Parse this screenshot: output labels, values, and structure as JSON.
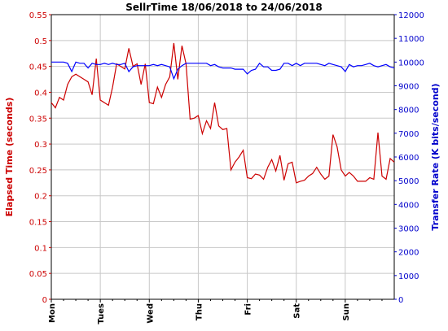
{
  "chart_data": {
    "type": "line",
    "title": "SellrTime 18/06/2018 to 24/06/2018",
    "ylabel": "Elapsed Time (seconds)",
    "y2label": "Transfer Rate (K bits/second)",
    "colors": {
      "elapsed": "#cc0000",
      "transfer": "#0000ff",
      "grid": "#c8c8c8"
    },
    "ylim": [
      0,
      0.55
    ],
    "y2lim": [
      0,
      12000
    ],
    "x_ticks": [
      "Mon",
      "Tues",
      "Wed",
      "Thu",
      "Fri",
      "Sat",
      "Sun"
    ],
    "y_ticks": [
      "0",
      "0.05",
      "0.1",
      "0.15",
      "0.2",
      "0.25",
      "0.3",
      "0.35",
      "0.4",
      "0.45",
      "0.5",
      "0.55"
    ],
    "y2_ticks": [
      "0",
      "1000",
      "2000",
      "3000",
      "4000",
      "5000",
      "6000",
      "7000",
      "8000",
      "9000",
      "10000",
      "11000",
      "12000"
    ],
    "x_range_days": 7,
    "series": [
      {
        "axis": "left",
        "color": "#cc0000",
        "x": [
          0,
          0.083,
          0.167,
          0.25,
          0.333,
          0.417,
          0.5,
          0.583,
          0.667,
          0.75,
          0.833,
          0.917,
          1.0,
          1.083,
          1.167,
          1.25,
          1.333,
          1.417,
          1.5,
          1.583,
          1.667,
          1.75,
          1.833,
          1.917,
          2.0,
          2.083,
          2.167,
          2.25,
          2.333,
          2.417,
          2.5,
          2.583,
          2.667,
          2.75,
          2.833,
          2.917,
          3.0,
          3.083,
          3.167,
          3.25,
          3.333,
          3.417,
          3.5,
          3.583,
          3.667,
          3.75,
          3.833,
          3.917,
          4.0,
          4.083,
          4.167,
          4.25,
          4.333,
          4.417,
          4.5,
          4.583,
          4.667,
          4.75,
          4.833,
          4.917,
          5.0,
          5.083,
          5.167,
          5.25,
          5.333,
          5.417,
          5.5,
          5.583,
          5.667,
          5.75,
          5.833,
          5.917,
          6.0,
          6.083,
          6.167,
          6.25,
          6.333,
          6.417,
          6.5,
          6.583,
          6.667,
          6.75,
          6.833,
          6.917,
          7.0
        ],
        "values": [
          0.38,
          0.37,
          0.39,
          0.385,
          0.415,
          0.43,
          0.435,
          0.43,
          0.425,
          0.42,
          0.395,
          0.465,
          0.385,
          0.38,
          0.375,
          0.41,
          0.455,
          0.45,
          0.445,
          0.485,
          0.45,
          0.455,
          0.415,
          0.455,
          0.38,
          0.378,
          0.41,
          0.39,
          0.415,
          0.43,
          0.495,
          0.425,
          0.49,
          0.455,
          0.348,
          0.35,
          0.355,
          0.32,
          0.345,
          0.33,
          0.38,
          0.335,
          0.328,
          0.33,
          0.25,
          0.265,
          0.275,
          0.288,
          0.235,
          0.233,
          0.242,
          0.24,
          0.232,
          0.255,
          0.27,
          0.248,
          0.278,
          0.23,
          0.262,
          0.265,
          0.225,
          0.228,
          0.23,
          0.238,
          0.243,
          0.255,
          0.242,
          0.232,
          0.238,
          0.318,
          0.295,
          0.25,
          0.238,
          0.245,
          0.238,
          0.228,
          0.228,
          0.228,
          0.235,
          0.232,
          0.322,
          0.238,
          0.232,
          0.272,
          0.265
        ]
      },
      {
        "axis": "right",
        "color": "#0000ff",
        "x": [
          0,
          0.083,
          0.167,
          0.25,
          0.333,
          0.417,
          0.5,
          0.583,
          0.667,
          0.75,
          0.833,
          0.917,
          1.0,
          1.083,
          1.167,
          1.25,
          1.333,
          1.417,
          1.5,
          1.583,
          1.667,
          1.75,
          1.833,
          1.917,
          2.0,
          2.083,
          2.167,
          2.25,
          2.333,
          2.417,
          2.5,
          2.583,
          2.667,
          2.75,
          2.833,
          2.917,
          3.0,
          3.083,
          3.167,
          3.25,
          3.333,
          3.417,
          3.5,
          3.583,
          3.667,
          3.75,
          3.833,
          3.917,
          4.0,
          4.083,
          4.167,
          4.25,
          4.333,
          4.417,
          4.5,
          4.583,
          4.667,
          4.75,
          4.833,
          4.917,
          5.0,
          5.083,
          5.167,
          5.25,
          5.333,
          5.417,
          5.5,
          5.583,
          5.667,
          5.75,
          5.833,
          5.917,
          6.0,
          6.083,
          6.167,
          6.25,
          6.333,
          6.417,
          6.5,
          6.583,
          6.667,
          6.75,
          6.833,
          6.917,
          7.0
        ],
        "values": [
          10000,
          10000,
          10000,
          10000,
          9950,
          9600,
          10000,
          9950,
          9950,
          9750,
          9950,
          9900,
          9900,
          9950,
          9900,
          9950,
          9900,
          9900,
          9950,
          9600,
          9800,
          9850,
          9850,
          9850,
          9850,
          9900,
          9850,
          9900,
          9850,
          9800,
          9300,
          9700,
          9850,
          9950,
          9950,
          9950,
          9950,
          9950,
          9950,
          9850,
          9900,
          9800,
          9750,
          9750,
          9750,
          9700,
          9700,
          9700,
          9500,
          9650,
          9700,
          9950,
          9800,
          9800,
          9650,
          9650,
          9700,
          9950,
          9950,
          9850,
          9950,
          9850,
          9950,
          9950,
          9950,
          9950,
          9900,
          9850,
          9950,
          9900,
          9850,
          9800,
          9600,
          9900,
          9800,
          9850,
          9850,
          9900,
          9950,
          9850,
          9800,
          9850,
          9900,
          9800,
          9750
        ]
      }
    ]
  }
}
